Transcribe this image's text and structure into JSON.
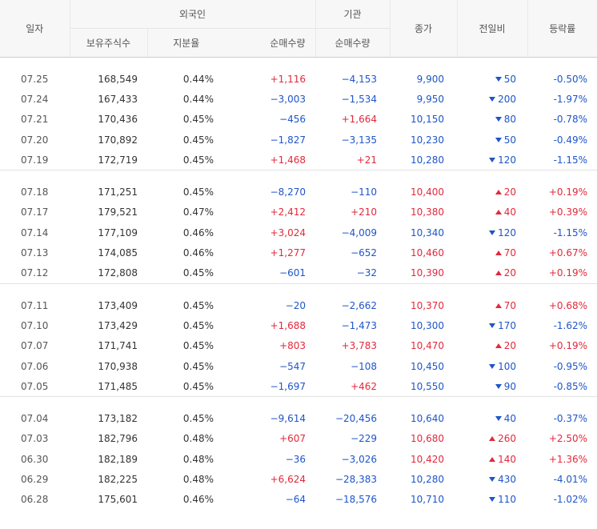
{
  "headers": {
    "date": "일자",
    "foreign": "외국인",
    "institution": "기관",
    "close": "종가",
    "change": "전일비",
    "rate": "등락률",
    "holdings": "보유주식수",
    "share": "지분율",
    "net_buy_foreign": "순매수량",
    "net_buy_inst": "순매수량"
  },
  "groups": [
    [
      {
        "date": "07.25",
        "holdings": "168,549",
        "share": "0.44%",
        "foreign_net": "+1,116",
        "inst_net": "−4,153",
        "close": "9,900",
        "change": "50",
        "dir": "down",
        "rate": "-0.50%"
      },
      {
        "date": "07.24",
        "holdings": "167,433",
        "share": "0.44%",
        "foreign_net": "−3,003",
        "inst_net": "−1,534",
        "close": "9,950",
        "change": "200",
        "dir": "down",
        "rate": "-1.97%"
      },
      {
        "date": "07.21",
        "holdings": "170,436",
        "share": "0.45%",
        "foreign_net": "−456",
        "inst_net": "+1,664",
        "close": "10,150",
        "change": "80",
        "dir": "down",
        "rate": "-0.78%"
      },
      {
        "date": "07.20",
        "holdings": "170,892",
        "share": "0.45%",
        "foreign_net": "−1,827",
        "inst_net": "−3,135",
        "close": "10,230",
        "change": "50",
        "dir": "down",
        "rate": "-0.49%"
      },
      {
        "date": "07.19",
        "holdings": "172,719",
        "share": "0.45%",
        "foreign_net": "+1,468",
        "inst_net": "+21",
        "close": "10,280",
        "change": "120",
        "dir": "down",
        "rate": "-1.15%"
      }
    ],
    [
      {
        "date": "07.18",
        "holdings": "171,251",
        "share": "0.45%",
        "foreign_net": "−8,270",
        "inst_net": "−110",
        "close": "10,400",
        "change": "20",
        "dir": "up",
        "rate": "+0.19%"
      },
      {
        "date": "07.17",
        "holdings": "179,521",
        "share": "0.47%",
        "foreign_net": "+2,412",
        "inst_net": "+210",
        "close": "10,380",
        "change": "40",
        "dir": "up",
        "rate": "+0.39%"
      },
      {
        "date": "07.14",
        "holdings": "177,109",
        "share": "0.46%",
        "foreign_net": "+3,024",
        "inst_net": "−4,009",
        "close": "10,340",
        "change": "120",
        "dir": "down",
        "rate": "-1.15%"
      },
      {
        "date": "07.13",
        "holdings": "174,085",
        "share": "0.46%",
        "foreign_net": "+1,277",
        "inst_net": "−652",
        "close": "10,460",
        "change": "70",
        "dir": "up",
        "rate": "+0.67%"
      },
      {
        "date": "07.12",
        "holdings": "172,808",
        "share": "0.45%",
        "foreign_net": "−601",
        "inst_net": "−32",
        "close": "10,390",
        "change": "20",
        "dir": "up",
        "rate": "+0.19%"
      }
    ],
    [
      {
        "date": "07.11",
        "holdings": "173,409",
        "share": "0.45%",
        "foreign_net": "−20",
        "inst_net": "−2,662",
        "close": "10,370",
        "change": "70",
        "dir": "up",
        "rate": "+0.68%"
      },
      {
        "date": "07.10",
        "holdings": "173,429",
        "share": "0.45%",
        "foreign_net": "+1,688",
        "inst_net": "−1,473",
        "close": "10,300",
        "change": "170",
        "dir": "down",
        "rate": "-1.62%"
      },
      {
        "date": "07.07",
        "holdings": "171,741",
        "share": "0.45%",
        "foreign_net": "+803",
        "inst_net": "+3,783",
        "close": "10,470",
        "change": "20",
        "dir": "up",
        "rate": "+0.19%"
      },
      {
        "date": "07.06",
        "holdings": "170,938",
        "share": "0.45%",
        "foreign_net": "−547",
        "inst_net": "−108",
        "close": "10,450",
        "change": "100",
        "dir": "down",
        "rate": "-0.95%"
      },
      {
        "date": "07.05",
        "holdings": "171,485",
        "share": "0.45%",
        "foreign_net": "−1,697",
        "inst_net": "+462",
        "close": "10,550",
        "change": "90",
        "dir": "down",
        "rate": "-0.85%"
      }
    ],
    [
      {
        "date": "07.04",
        "holdings": "173,182",
        "share": "0.45%",
        "foreign_net": "−9,614",
        "inst_net": "−20,456",
        "close": "10,640",
        "change": "40",
        "dir": "down",
        "rate": "-0.37%"
      },
      {
        "date": "07.03",
        "holdings": "182,796",
        "share": "0.48%",
        "foreign_net": "+607",
        "inst_net": "−229",
        "close": "10,680",
        "change": "260",
        "dir": "up",
        "rate": "+2.50%"
      },
      {
        "date": "06.30",
        "holdings": "182,189",
        "share": "0.48%",
        "foreign_net": "−36",
        "inst_net": "−3,026",
        "close": "10,420",
        "change": "140",
        "dir": "up",
        "rate": "+1.36%"
      },
      {
        "date": "06.29",
        "holdings": "182,225",
        "share": "0.48%",
        "foreign_net": "+6,624",
        "inst_net": "−28,383",
        "close": "10,280",
        "change": "430",
        "dir": "down",
        "rate": "-4.01%"
      },
      {
        "date": "06.28",
        "holdings": "175,601",
        "share": "0.46%",
        "foreign_net": "−64",
        "inst_net": "−18,576",
        "close": "10,710",
        "change": "110",
        "dir": "down",
        "rate": "-1.02%"
      }
    ]
  ],
  "colors": {
    "up": "#e2293b",
    "down": "#1e55c9",
    "header_bg": "#f7f7f7"
  }
}
